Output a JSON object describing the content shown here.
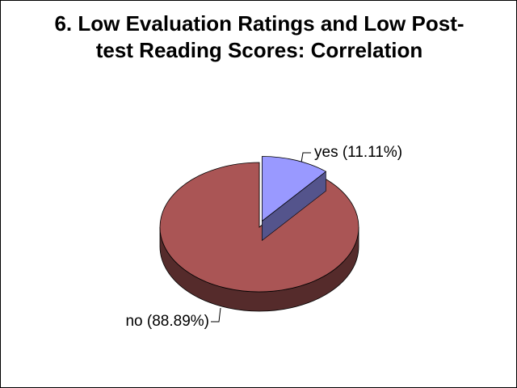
{
  "chart_data": {
    "type": "pie",
    "title": "6. Low Evaluation Ratings and Low Post-test Reading Scores: Correlation",
    "categories": [
      "yes",
      "no"
    ],
    "values": [
      11.11,
      88.89
    ],
    "value_labels": [
      "yes (11.11%)",
      "no (88.89%)"
    ],
    "colors": [
      "#9999ff",
      "#aa5555"
    ]
  }
}
